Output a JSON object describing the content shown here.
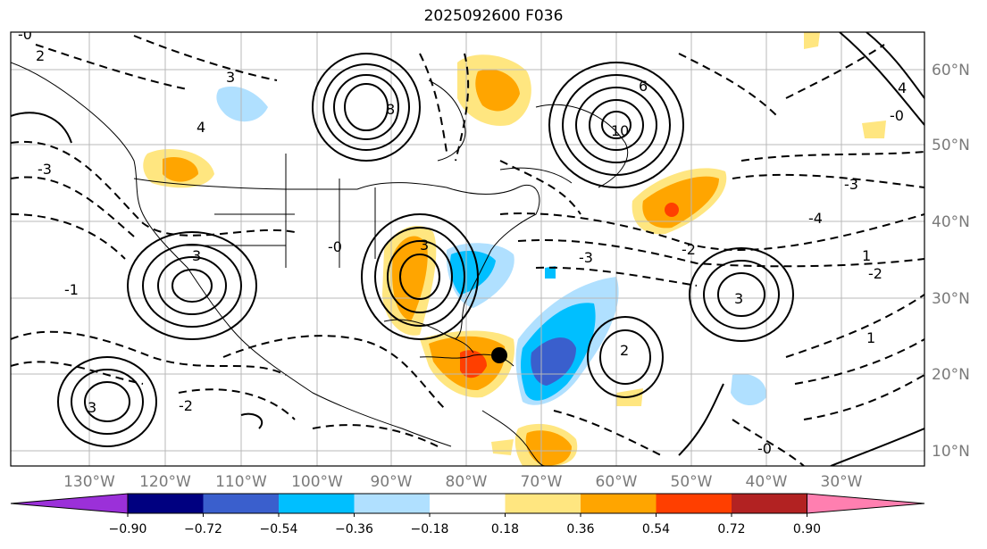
{
  "title": "2025092600 F036",
  "lon_ticks": [
    "130°W",
    "120°W",
    "110°W",
    "100°W",
    "90°W",
    "80°W",
    "70°W",
    "60°W",
    "50°W",
    "40°W",
    "30°W"
  ],
  "lat_ticks": [
    "60°N",
    "50°N",
    "40°N",
    "30°N",
    "20°N",
    "10°N"
  ],
  "colorbar": {
    "ticks": [
      "−0.90",
      "−0.72",
      "−0.54",
      "−0.36",
      "−0.18",
      "0.18",
      "0.36",
      "0.54",
      "0.72",
      "0.90"
    ],
    "colors": {
      "under": "#9b30d9",
      "bins": [
        "#000080",
        "#3a5fcd",
        "#00bfff",
        "#b0e0ff",
        "#ffffff",
        "#ffe680",
        "#ffa500",
        "#ff3f00",
        "#b22222"
      ],
      "over": "#ff7fb0"
    }
  },
  "contour_labels": [
    "-0",
    "2",
    "3",
    "4",
    "6",
    "8",
    "10",
    "-1",
    "-2",
    "-3",
    "-4",
    "1"
  ],
  "marker": "storm-center"
}
